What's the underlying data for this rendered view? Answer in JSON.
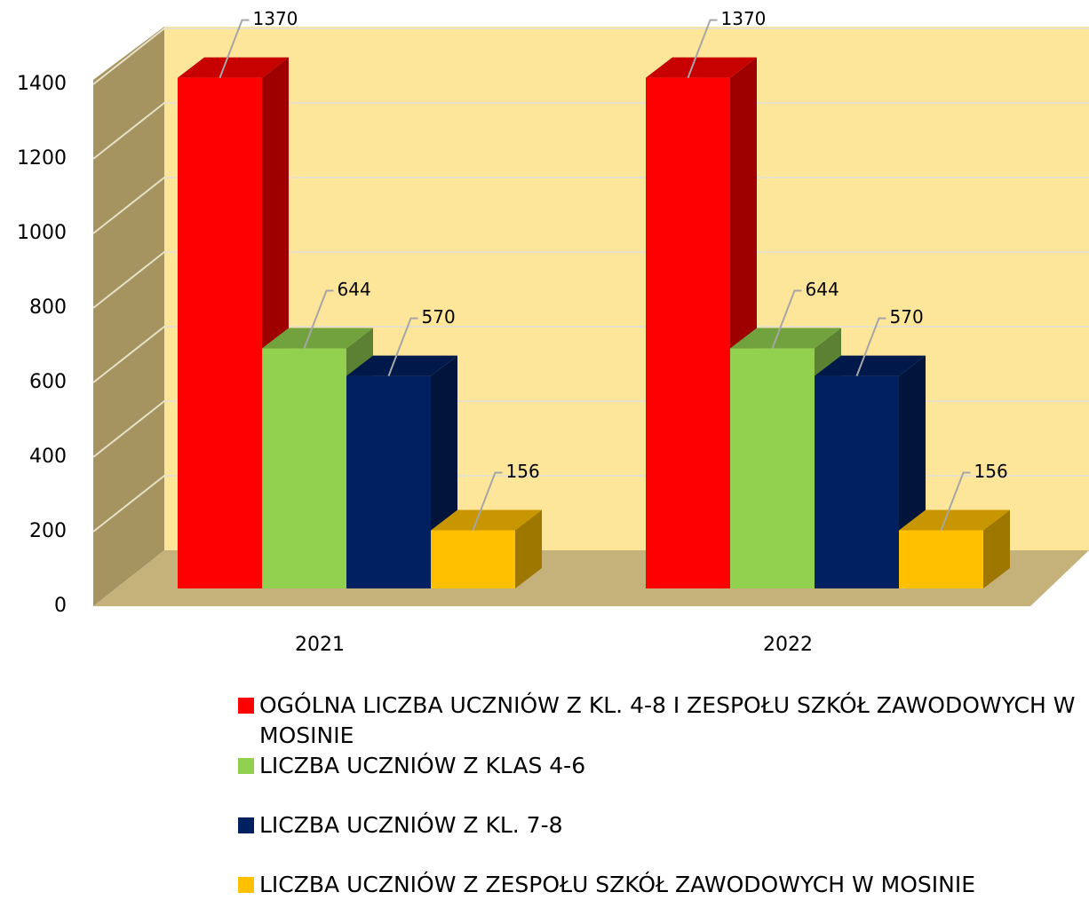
{
  "chart_data": {
    "type": "bar3d",
    "categories": [
      "2021",
      "2022"
    ],
    "series": [
      {
        "name": "OGÓLNA LICZBA UCZNIÓW Z KL. 4-8 I ZESPOŁU SZKÓŁ ZAWODOWYCH W MOSINIE",
        "color": "#ff0000",
        "values": [
          1370,
          1370
        ]
      },
      {
        "name": "LICZBA UCZNIÓW Z KLAS 4-6",
        "color": "#92d050",
        "values": [
          644,
          644
        ]
      },
      {
        "name": "LICZBA UCZNIÓW Z KL. 7-8",
        "color": "#002060",
        "values": [
          570,
          570
        ]
      },
      {
        "name": "LICZBA UCZNIÓW Z ZESPOŁU SZKÓŁ ZAWODOWYCH W MOSINIE",
        "color": "#ffc000",
        "values": [
          156,
          156
        ]
      }
    ],
    "ylim": [
      0,
      1400
    ],
    "yticks": [
      0,
      200,
      400,
      600,
      800,
      1000,
      1200,
      1400
    ],
    "grid": true
  }
}
